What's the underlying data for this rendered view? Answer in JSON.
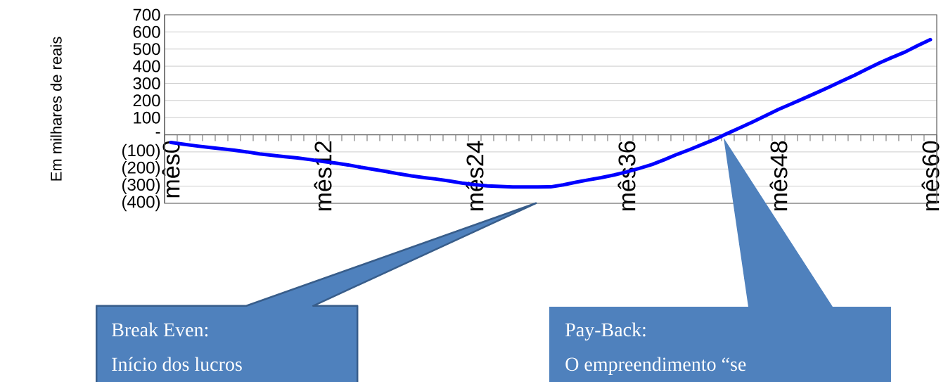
{
  "chart_data": {
    "type": "line",
    "ylabel": "Em milhares de reais",
    "categories": [
      "mês0",
      null,
      null,
      null,
      null,
      null,
      null,
      null,
      null,
      null,
      null,
      null,
      "mês12",
      null,
      null,
      null,
      null,
      null,
      null,
      null,
      null,
      null,
      null,
      null,
      "mês24",
      null,
      null,
      null,
      null,
      null,
      null,
      null,
      null,
      null,
      null,
      null,
      "mês36",
      null,
      null,
      null,
      null,
      null,
      null,
      null,
      null,
      null,
      null,
      null,
      "mês48",
      null,
      null,
      null,
      null,
      null,
      null,
      null,
      null,
      null,
      null,
      null,
      "mês60"
    ],
    "series": [
      {
        "color": "#0000ff",
        "values": [
          -45,
          -55,
          -65,
          -74,
          -82,
          -90,
          -100,
          -112,
          -120,
          -128,
          -135,
          -145,
          -156,
          -165,
          -176,
          -190,
          -202,
          -214,
          -228,
          -240,
          -250,
          -259,
          -270,
          -282,
          -291,
          -298,
          -302,
          -305,
          -305,
          -305,
          -304,
          -292,
          -277,
          -263,
          -250,
          -235,
          -217,
          -196,
          -174,
          -145,
          -114,
          -86,
          -56,
          -26,
          9,
          42,
          76,
          112,
          148,
          180,
          212,
          245,
          278,
          313,
          347,
          384,
          420,
          452,
          483,
          520,
          555
        ]
      }
    ],
    "ylim": [
      -400,
      700
    ],
    "yticks": [
      {
        "value": -400,
        "label": "(400)"
      },
      {
        "value": -300,
        "label": "(300)"
      },
      {
        "value": -200,
        "label": "(200)"
      },
      {
        "value": -100,
        "label": "(100)"
      },
      {
        "value": 0,
        "label": "-"
      },
      100,
      200,
      300,
      400,
      500,
      600,
      700
    ],
    "grid": "y",
    "marker": "none",
    "line_style": "solid",
    "annotations": [
      "Break Even:",
      "Início dos lucros",
      "Pay-Back:",
      "O empreendimento “se"
    ]
  }
}
